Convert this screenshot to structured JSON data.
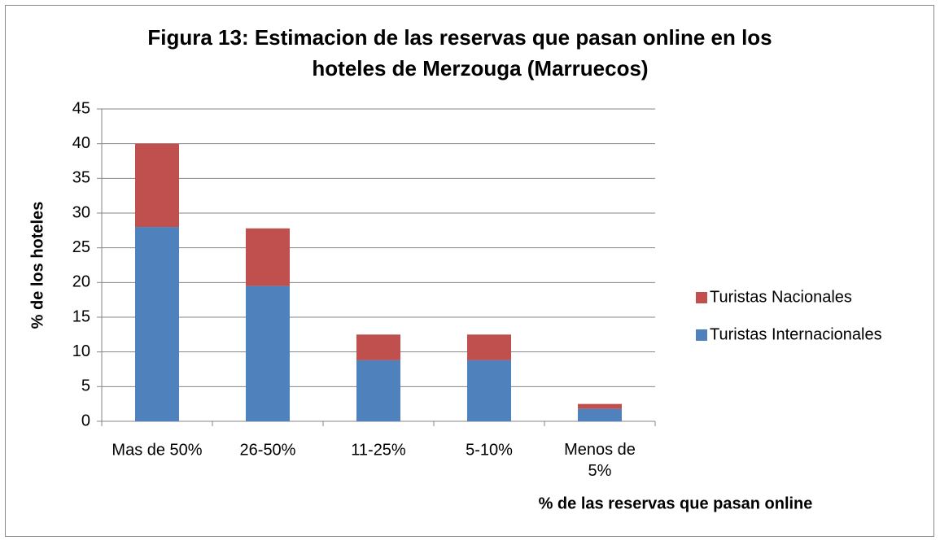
{
  "chart_data": {
    "type": "bar",
    "stacked": true,
    "title": [
      "Figura 13: Estimacion de las reservas que pasan online en los",
      "hoteles de Merzouga (Marruecos)"
    ],
    "x_label": "% de las reservas que pasan online",
    "y_label": "% de los hoteles",
    "categories": [
      "Mas de 50%",
      "26-50%",
      "11-25%",
      "5-10%",
      "Menos de 5%"
    ],
    "series": [
      {
        "name": "Turistas Internacionales",
        "color": "#4f81bd",
        "values": [
          28,
          19.5,
          8.8,
          8.8,
          1.8
        ]
      },
      {
        "name": "Turistas Nacionales",
        "color": "#c0504d",
        "values": [
          12,
          8.3,
          3.7,
          3.7,
          0.7
        ]
      }
    ],
    "ylim": [
      0,
      45
    ],
    "yticks": [
      0,
      5,
      10,
      15,
      20,
      25,
      30,
      35,
      40,
      45
    ],
    "grid": true,
    "legend": "right"
  }
}
